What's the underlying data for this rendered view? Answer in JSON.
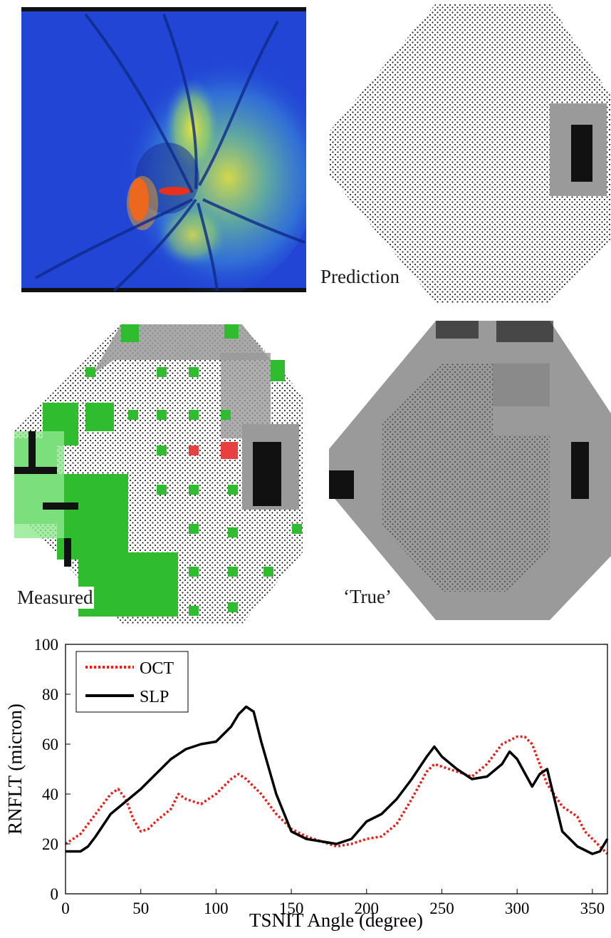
{
  "panels": {
    "heatmap": {
      "colors": {
        "background": "#1f3fd2",
        "mid": "#3a8ad8",
        "high": "#e8e83a",
        "hot": "#e8301f"
      }
    },
    "prediction": {
      "label": "Prediction"
    },
    "measured": {
      "label": "Measured"
    },
    "true_map": {
      "label": "‘True’"
    },
    "vf_colors": {
      "dot": "#222222",
      "gray": "#9a9a9a",
      "dark": "#111111",
      "green": "#2fbd2f",
      "light_green": "#8fe88f",
      "red": "#e84040"
    }
  },
  "chart_data": {
    "type": "line",
    "xlabel": "TSNIT Angle (degree)",
    "ylabel": "RNFLT (micron)",
    "xlim": [
      0,
      360
    ],
    "ylim": [
      0,
      100
    ],
    "xticks": [
      "0",
      "50",
      "100",
      "150",
      "200",
      "250",
      "300",
      "350"
    ],
    "yticks": [
      "0",
      "20",
      "40",
      "60",
      "80",
      "100"
    ],
    "legend_position": "top-left",
    "series": [
      {
        "name": "OCT",
        "color": "#e8201c",
        "style": "dotted",
        "x": [
          0,
          10,
          20,
          30,
          35,
          40,
          45,
          50,
          55,
          60,
          70,
          75,
          80,
          90,
          100,
          110,
          115,
          120,
          130,
          140,
          150,
          160,
          170,
          180,
          190,
          200,
          210,
          220,
          230,
          240,
          245,
          250,
          260,
          270,
          280,
          290,
          300,
          305,
          310,
          320,
          330,
          340,
          345,
          350,
          360
        ],
        "y": [
          20,
          24,
          32,
          40,
          42,
          38,
          30,
          25,
          26,
          29,
          34,
          40,
          38,
          36,
          40,
          46,
          48,
          46,
          40,
          32,
          26,
          23,
          21,
          19,
          20,
          22,
          23,
          28,
          38,
          49,
          52,
          51,
          49,
          47,
          52,
          60,
          63,
          63,
          60,
          44,
          35,
          31,
          25,
          22,
          16
        ]
      },
      {
        "name": "SLP",
        "color": "#000000",
        "style": "solid",
        "x": [
          0,
          10,
          15,
          20,
          30,
          40,
          50,
          60,
          70,
          80,
          90,
          100,
          110,
          115,
          120,
          125,
          130,
          140,
          150,
          160,
          170,
          180,
          190,
          200,
          210,
          220,
          230,
          240,
          245,
          250,
          260,
          270,
          280,
          290,
          295,
          300,
          310,
          315,
          320,
          330,
          340,
          350,
          355,
          360
        ],
        "y": [
          17,
          17,
          19,
          23,
          32,
          37,
          42,
          48,
          54,
          58,
          60,
          61,
          67,
          72,
          75,
          73,
          61,
          40,
          25,
          22,
          21,
          20,
          22,
          29,
          32,
          38,
          46,
          55,
          59,
          55,
          50,
          46,
          47,
          52,
          57,
          54,
          43,
          48,
          50,
          25,
          19,
          16,
          17,
          22
        ]
      }
    ]
  }
}
